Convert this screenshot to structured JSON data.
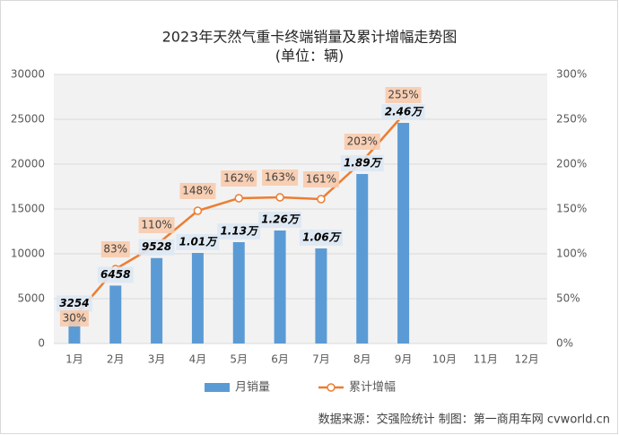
{
  "chart_data": {
    "type": "bar_line",
    "title": "2023年天然气重卡终端销量及累计增幅走势图",
    "subtitle": "(单位：辆)",
    "categories": [
      "1月",
      "2月",
      "3月",
      "4月",
      "5月",
      "6月",
      "7月",
      "8月",
      "9月",
      "10月",
      "11月",
      "12月"
    ],
    "series": [
      {
        "name": "月销量",
        "type": "bar",
        "color": "#5b9bd5",
        "axis": "y",
        "values": [
          3254,
          6458,
          9528,
          10100,
          11300,
          12600,
          10600,
          18900,
          24600,
          null,
          null,
          null
        ],
        "value_labels": [
          "3254",
          "6458",
          "9528",
          "1.01万",
          "1.13万",
          "1.26万",
          "1.06万",
          "1.89万",
          "2.46万",
          null,
          null,
          null
        ]
      },
      {
        "name": "累计增幅",
        "type": "line",
        "color": "#ed7d31",
        "axis": "y2",
        "values": [
          30,
          83,
          110,
          148,
          162,
          163,
          161,
          203,
          255,
          null,
          null,
          null
        ],
        "value_labels": [
          "30%",
          "83%",
          "110%",
          "148%",
          "162%",
          "163%",
          "161%",
          "203%",
          "255%",
          null,
          null,
          null
        ]
      }
    ],
    "ylim": [
      0,
      30000
    ],
    "yticks": [
      0,
      5000,
      10000,
      15000,
      20000,
      25000,
      30000
    ],
    "y2lim": [
      0,
      300
    ],
    "y2ticks": [
      {
        "value": 0,
        "label": "0%"
      },
      {
        "value": 50,
        "label": "50%"
      },
      {
        "value": 100,
        "label": "100%"
      },
      {
        "value": 150,
        "label": "150%"
      },
      {
        "value": 200,
        "label": "200%"
      },
      {
        "value": 250,
        "label": "250%"
      },
      {
        "value": 300,
        "label": "300%"
      }
    ],
    "grid": true,
    "legend": "bottom",
    "source": "数据来源：交强险统计  制图：第一商用车网 cvworld.cn"
  }
}
